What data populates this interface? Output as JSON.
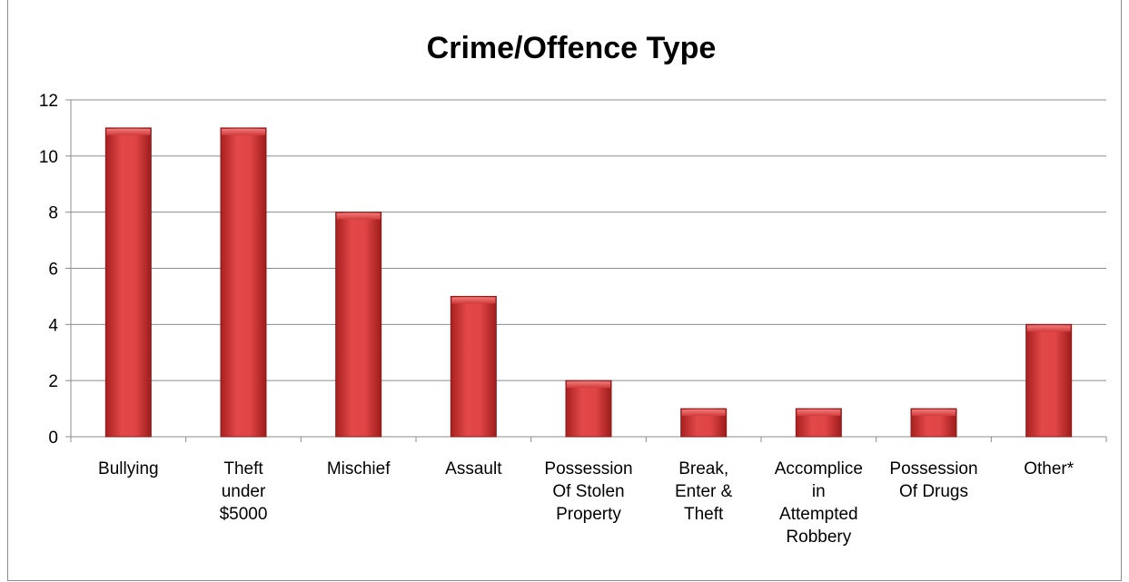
{
  "chart_data": {
    "type": "bar",
    "title": "Crime/Offence Type",
    "xlabel": "",
    "ylabel": "",
    "ylim": [
      0,
      12
    ],
    "yticks": [
      0,
      2,
      4,
      6,
      8,
      10,
      12
    ],
    "grid": true,
    "legend": "none",
    "bar_color": "#d63a3a",
    "bar_edge_color": "#8b1a1a",
    "categories": [
      [
        "Bullying"
      ],
      [
        "Theft",
        "under",
        "$5000"
      ],
      [
        "Mischief"
      ],
      [
        "Assault"
      ],
      [
        "Possession",
        "Of Stolen",
        "Property"
      ],
      [
        "Break,",
        "Enter &",
        "Theft"
      ],
      [
        "Accomplice",
        "in",
        "Attempted",
        "Robbery"
      ],
      [
        "Possession",
        "Of Drugs"
      ],
      [
        "Other*"
      ]
    ],
    "values": [
      11,
      11,
      8,
      5,
      2,
      1,
      1,
      1,
      4
    ]
  }
}
